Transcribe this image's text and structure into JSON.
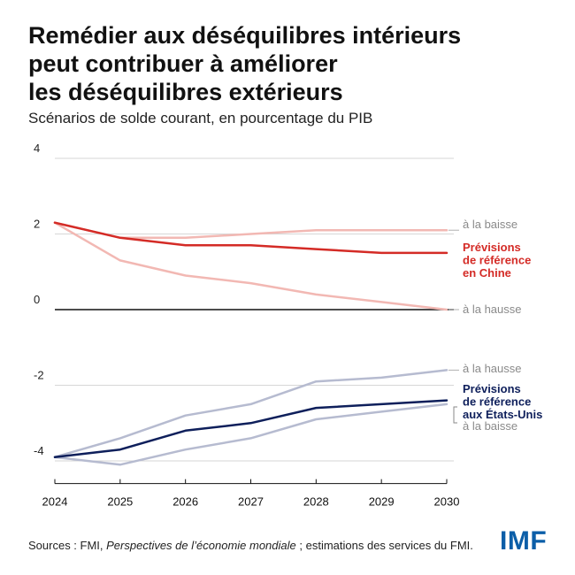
{
  "header": {
    "title_lines": [
      "Remédier aux déséquilibres intérieurs",
      "peut contribuer à améliorer",
      "les déséquilibres extérieurs"
    ],
    "subtitle": "Scénarios de solde courant, en pourcentage du PIB"
  },
  "chart_data": {
    "type": "line",
    "title": "Remédier aux déséquilibres intérieurs peut contribuer à améliorer les déséquilibres extérieurs",
    "subtitle": "Scénarios de solde courant, en pourcentage du PIB",
    "xlabel": "",
    "ylabel": "",
    "x": [
      2024,
      2025,
      2026,
      2027,
      2028,
      2029,
      2030
    ],
    "ylim": [
      -4.6,
      4
    ],
    "yticks": [
      4,
      2,
      0,
      -2,
      -4
    ],
    "ytick_labels": [
      "4",
      "2",
      "0",
      "-2",
      "-4"
    ],
    "xtick_labels": [
      "2024",
      "2025",
      "2026",
      "2027",
      "2028",
      "2029",
      "2030"
    ],
    "gridlines": true,
    "series": [
      {
        "id": "china-baisse",
        "name": "à la baisse",
        "color": "#f2b8b3",
        "width": 2.5,
        "values": [
          2.3,
          1.9,
          1.9,
          2.0,
          2.1,
          2.1,
          2.1
        ]
      },
      {
        "id": "china-hausse",
        "name": "à la hausse",
        "color": "#f2b8b3",
        "width": 2.5,
        "values": [
          2.3,
          1.3,
          0.9,
          0.7,
          0.4,
          0.2,
          0.0
        ]
      },
      {
        "id": "china-base",
        "name": "Prévisions de référence en Chine",
        "color": "#d42b26",
        "width": 2.5,
        "values": [
          2.3,
          1.9,
          1.7,
          1.7,
          1.6,
          1.5,
          1.5
        ]
      },
      {
        "id": "us-hausse",
        "name": "à la hausse",
        "color": "#b6bbd0",
        "width": 2.5,
        "values": [
          -3.9,
          -3.4,
          -2.8,
          -2.5,
          -1.9,
          -1.8,
          -1.6
        ]
      },
      {
        "id": "us-baisse",
        "name": "à la baisse",
        "color": "#b6bbd0",
        "width": 2.5,
        "values": [
          -3.9,
          -4.1,
          -3.7,
          -3.4,
          -2.9,
          -2.7,
          -2.5
        ]
      },
      {
        "id": "us-base",
        "name": "Prévisions de référence aux États-Unis",
        "color": "#0e1f5b",
        "width": 2.5,
        "values": [
          -3.9,
          -3.7,
          -3.2,
          -3.0,
          -2.6,
          -2.5,
          -2.4
        ]
      }
    ],
    "annotations": [
      {
        "series": "china-baisse",
        "lines": [
          "à la baisse"
        ],
        "color": "#8a8a8a",
        "bold": false
      },
      {
        "series": "china-base",
        "lines": [
          "Prévisions",
          "de référence",
          "en Chine"
        ],
        "color": "#d42b26",
        "bold": true
      },
      {
        "series": "china-hausse",
        "lines": [
          "à la hausse"
        ],
        "color": "#8a8a8a",
        "bold": false
      },
      {
        "series": "us-hausse",
        "lines": [
          "à la hausse"
        ],
        "color": "#8a8a8a",
        "bold": false
      },
      {
        "series": "us-base",
        "lines": [
          "Prévisions",
          "de référence",
          "aux États-Unis"
        ],
        "color": "#0e1f5b",
        "bold": true
      },
      {
        "series": "us-baisse",
        "lines": [
          "à la baisse"
        ],
        "color": "#8a8a8a",
        "bold": false
      }
    ]
  },
  "footer": {
    "source_prefix": "Sources : FMI, ",
    "source_italic": "Perspectives de l’économie mondiale",
    "source_suffix": " ; estimations des services du FMI.",
    "logo": "IMF"
  }
}
